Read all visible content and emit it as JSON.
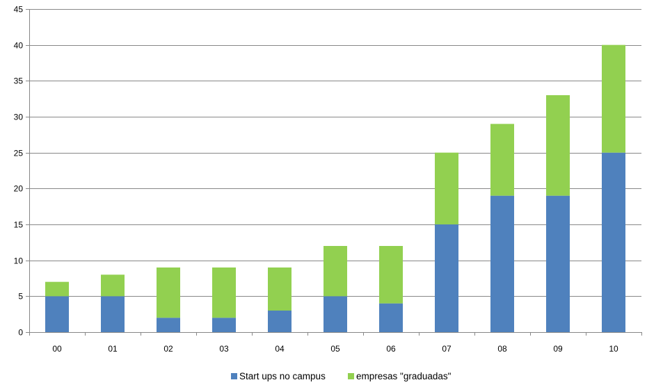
{
  "chart_data": {
    "type": "bar",
    "stacked": true,
    "categories": [
      "00",
      "01",
      "02",
      "03",
      "04",
      "05",
      "06",
      "07",
      "08",
      "09",
      "10"
    ],
    "series": [
      {
        "name": "Start ups no campus",
        "values": [
          5,
          5,
          2,
          2,
          3,
          5,
          4,
          15,
          19,
          19,
          25
        ],
        "color": "#4F81BD"
      },
      {
        "name": "empresas \"graduadas\"",
        "values": [
          2,
          3,
          7,
          7,
          6,
          7,
          8,
          10,
          10,
          14,
          15
        ],
        "color": "#92D050"
      }
    ],
    "ylim": [
      0,
      45
    ],
    "yticks": [
      0,
      5,
      10,
      15,
      20,
      25,
      30,
      35,
      40,
      45
    ],
    "grid": true,
    "legend_position": "bottom"
  }
}
